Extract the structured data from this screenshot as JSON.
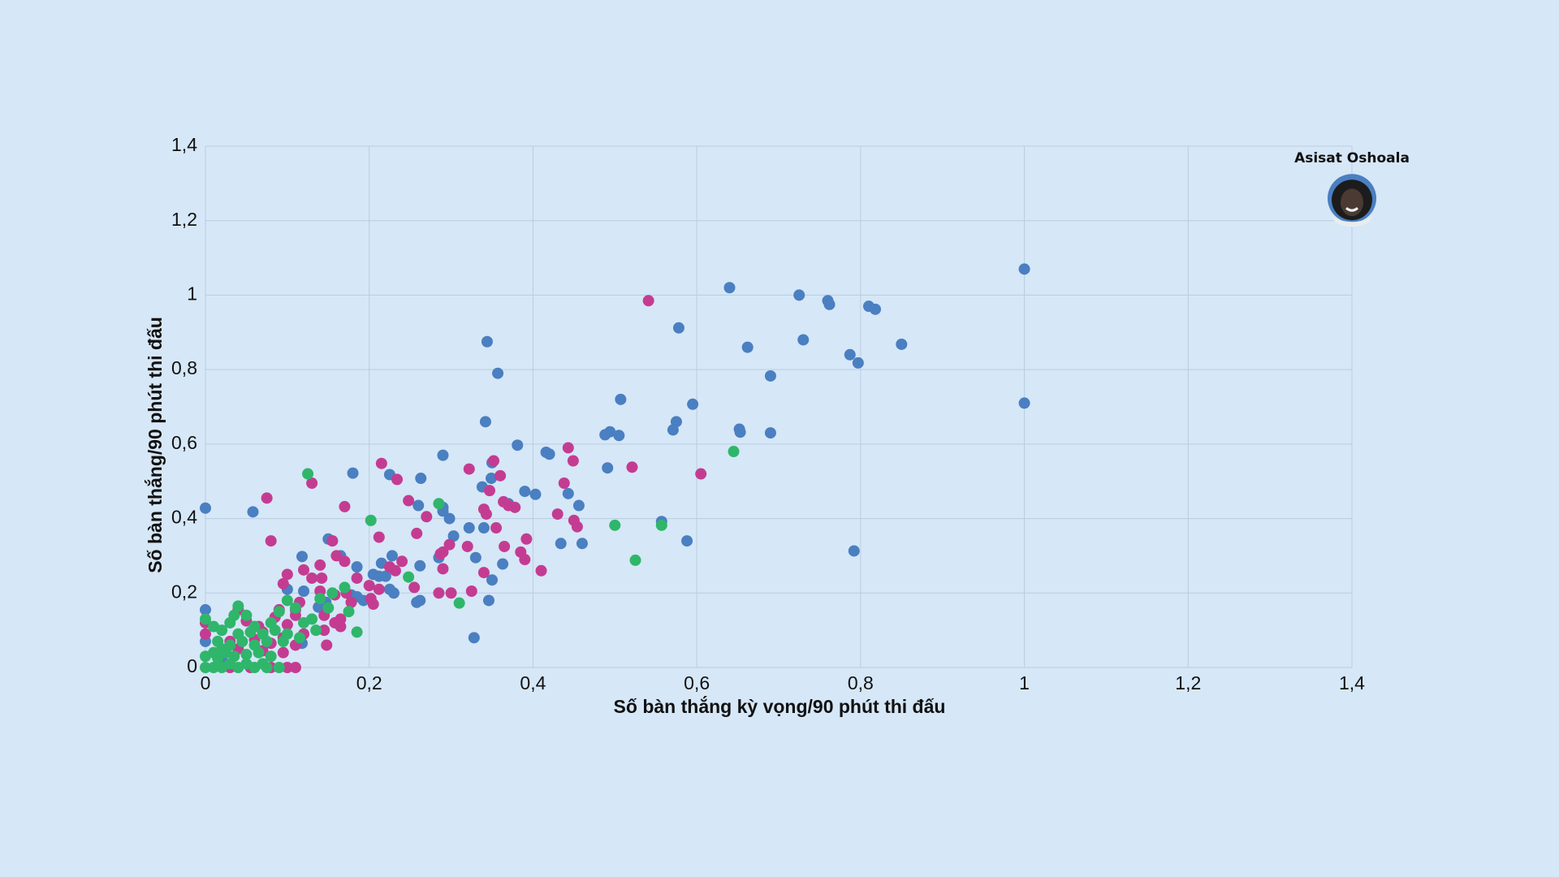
{
  "chart_data": {
    "type": "scatter",
    "title": "",
    "xlabel": "Số bàn thắng kỳ vọng/90 phút thi đấu",
    "ylabel": "Số bàn thắng/90 phút thi đấu",
    "xlim": [
      0,
      1.4
    ],
    "ylim": [
      0,
      1.4
    ],
    "x_ticks": [
      "0",
      "0,2",
      "0,4",
      "0,6",
      "0,8",
      "1",
      "1,2",
      "1,4"
    ],
    "y_ticks": [
      "0",
      "0,2",
      "0,4",
      "0,6",
      "0,8",
      "1",
      "1,2",
      "1,4"
    ],
    "grid": true,
    "highlight": {
      "name": "Asisat Oshoala",
      "x": 1.4,
      "y": 1.26,
      "color": "#4a7fc1"
    },
    "series": [
      {
        "color": "#4a7fc1",
        "points": [
          [
            1.0,
            1.07
          ],
          [
            1.0,
            0.71
          ],
          [
            0.64,
            1.02
          ],
          [
            0.725,
            1.0
          ],
          [
            0.76,
            0.985
          ],
          [
            0.762,
            0.975
          ],
          [
            0.81,
            0.97
          ],
          [
            0.818,
            0.962
          ],
          [
            0.578,
            0.912
          ],
          [
            0.85,
            0.868
          ],
          [
            0.73,
            0.88
          ],
          [
            0.662,
            0.86
          ],
          [
            0.787,
            0.84
          ],
          [
            0.797,
            0.818
          ],
          [
            0.69,
            0.783
          ],
          [
            0.344,
            0.875
          ],
          [
            0.357,
            0.79
          ],
          [
            0.507,
            0.72
          ],
          [
            0.595,
            0.707
          ],
          [
            0.575,
            0.66
          ],
          [
            0.571,
            0.638
          ],
          [
            0.652,
            0.64
          ],
          [
            0.653,
            0.632
          ],
          [
            0.69,
            0.63
          ],
          [
            0.494,
            0.633
          ],
          [
            0.488,
            0.625
          ],
          [
            0.505,
            0.623
          ],
          [
            0.342,
            0.66
          ],
          [
            0.381,
            0.597
          ],
          [
            0.416,
            0.578
          ],
          [
            0.42,
            0.573
          ],
          [
            0.29,
            0.57
          ],
          [
            0.35,
            0.55
          ],
          [
            0.491,
            0.536
          ],
          [
            0.18,
            0.522
          ],
          [
            0.225,
            0.518
          ],
          [
            0.263,
            0.508
          ],
          [
            0.349,
            0.508
          ],
          [
            0.338,
            0.485
          ],
          [
            0.39,
            0.473
          ],
          [
            0.403,
            0.465
          ],
          [
            0.443,
            0.467
          ],
          [
            0.456,
            0.435
          ],
          [
            0.37,
            0.44
          ],
          [
            0.29,
            0.43
          ],
          [
            0.26,
            0.435
          ],
          [
            0.29,
            0.42
          ],
          [
            0.298,
            0.4
          ],
          [
            0.557,
            0.392
          ],
          [
            0.34,
            0.375
          ],
          [
            0.322,
            0.375
          ],
          [
            0.303,
            0.353
          ],
          [
            0.434,
            0.333
          ],
          [
            0.46,
            0.333
          ],
          [
            0.588,
            0.34
          ],
          [
            0.792,
            0.313
          ],
          [
            0.15,
            0.345
          ],
          [
            0.155,
            0.34
          ],
          [
            0.118,
            0.298
          ],
          [
            0.165,
            0.3
          ],
          [
            0.228,
            0.3
          ],
          [
            0.285,
            0.295
          ],
          [
            0.33,
            0.295
          ],
          [
            0.363,
            0.278
          ],
          [
            0.215,
            0.28
          ],
          [
            0.262,
            0.273
          ],
          [
            0.185,
            0.27
          ],
          [
            0.205,
            0.25
          ],
          [
            0.212,
            0.245
          ],
          [
            0.22,
            0.245
          ],
          [
            0.35,
            0.235
          ],
          [
            0.1,
            0.21
          ],
          [
            0.12,
            0.205
          ],
          [
            0.225,
            0.21
          ],
          [
            0.23,
            0.2
          ],
          [
            0.178,
            0.195
          ],
          [
            0.185,
            0.19
          ],
          [
            0.193,
            0.18
          ],
          [
            0.258,
            0.175
          ],
          [
            0.262,
            0.18
          ],
          [
            0.346,
            0.18
          ],
          [
            0.147,
            0.175
          ],
          [
            0.138,
            0.162
          ],
          [
            0.328,
            0.08
          ],
          [
            0.118,
            0.065
          ],
          [
            0.0,
            0.428
          ],
          [
            0.058,
            0.418
          ],
          [
            0.0,
            0.155
          ],
          [
            0.0,
            0.07
          ],
          [
            0.02,
            0.025
          ]
        ]
      },
      {
        "color": "#c43c91",
        "points": [
          [
            0.541,
            0.985
          ],
          [
            0.605,
            0.52
          ],
          [
            0.075,
            0.455
          ],
          [
            0.13,
            0.495
          ],
          [
            0.215,
            0.548
          ],
          [
            0.234,
            0.505
          ],
          [
            0.248,
            0.448
          ],
          [
            0.27,
            0.405
          ],
          [
            0.17,
            0.432
          ],
          [
            0.08,
            0.34
          ],
          [
            0.322,
            0.533
          ],
          [
            0.352,
            0.555
          ],
          [
            0.36,
            0.515
          ],
          [
            0.347,
            0.475
          ],
          [
            0.438,
            0.495
          ],
          [
            0.443,
            0.59
          ],
          [
            0.449,
            0.555
          ],
          [
            0.521,
            0.538
          ],
          [
            0.364,
            0.445
          ],
          [
            0.37,
            0.435
          ],
          [
            0.378,
            0.43
          ],
          [
            0.34,
            0.425
          ],
          [
            0.343,
            0.412
          ],
          [
            0.43,
            0.412
          ],
          [
            0.45,
            0.395
          ],
          [
            0.454,
            0.378
          ],
          [
            0.355,
            0.375
          ],
          [
            0.392,
            0.345
          ],
          [
            0.365,
            0.325
          ],
          [
            0.385,
            0.31
          ],
          [
            0.39,
            0.29
          ],
          [
            0.41,
            0.26
          ],
          [
            0.212,
            0.35
          ],
          [
            0.258,
            0.36
          ],
          [
            0.298,
            0.33
          ],
          [
            0.287,
            0.305
          ],
          [
            0.29,
            0.31
          ],
          [
            0.32,
            0.325
          ],
          [
            0.155,
            0.34
          ],
          [
            0.16,
            0.3
          ],
          [
            0.14,
            0.275
          ],
          [
            0.12,
            0.262
          ],
          [
            0.232,
            0.26
          ],
          [
            0.225,
            0.27
          ],
          [
            0.24,
            0.285
          ],
          [
            0.1,
            0.25
          ],
          [
            0.17,
            0.285
          ],
          [
            0.185,
            0.24
          ],
          [
            0.2,
            0.22
          ],
          [
            0.212,
            0.21
          ],
          [
            0.255,
            0.215
          ],
          [
            0.3,
            0.2
          ],
          [
            0.285,
            0.2
          ],
          [
            0.325,
            0.205
          ],
          [
            0.34,
            0.255
          ],
          [
            0.29,
            0.265
          ],
          [
            0.13,
            0.24
          ],
          [
            0.142,
            0.24
          ],
          [
            0.095,
            0.225
          ],
          [
            0.14,
            0.205
          ],
          [
            0.158,
            0.195
          ],
          [
            0.172,
            0.2
          ],
          [
            0.178,
            0.175
          ],
          [
            0.202,
            0.185
          ],
          [
            0.205,
            0.17
          ],
          [
            0.115,
            0.175
          ],
          [
            0.11,
            0.155
          ],
          [
            0.09,
            0.155
          ],
          [
            0.085,
            0.135
          ],
          [
            0.165,
            0.13
          ],
          [
            0.145,
            0.14
          ],
          [
            0.158,
            0.12
          ],
          [
            0.145,
            0.1
          ],
          [
            0.12,
            0.09
          ],
          [
            0.165,
            0.11
          ],
          [
            0.04,
            0.155
          ],
          [
            0.05,
            0.125
          ],
          [
            0.065,
            0.11
          ],
          [
            0.07,
            0.095
          ],
          [
            0.1,
            0.115
          ],
          [
            0.11,
            0.14
          ],
          [
            0.06,
            0.075
          ],
          [
            0.08,
            0.065
          ],
          [
            0.095,
            0.08
          ],
          [
            0.148,
            0.06
          ],
          [
            0.11,
            0.06
          ],
          [
            0.0,
            0.12
          ],
          [
            0.0,
            0.09
          ],
          [
            0.03,
            0.07
          ],
          [
            0.04,
            0.05
          ],
          [
            0.07,
            0.045
          ],
          [
            0.095,
            0.04
          ],
          [
            0.1,
            0.0
          ],
          [
            0.11,
            0.0
          ],
          [
            0.08,
            0.0
          ],
          [
            0.03,
            0.0
          ],
          [
            0.055,
            0.0
          ]
        ]
      },
      {
        "color": "#2fb66a",
        "points": [
          [
            0.125,
            0.52
          ],
          [
            0.645,
            0.58
          ],
          [
            0.202,
            0.395
          ],
          [
            0.285,
            0.44
          ],
          [
            0.5,
            0.382
          ],
          [
            0.557,
            0.382
          ],
          [
            0.525,
            0.288
          ],
          [
            0.248,
            0.243
          ],
          [
            0.31,
            0.173
          ],
          [
            0.185,
            0.095
          ],
          [
            0.17,
            0.215
          ],
          [
            0.155,
            0.2
          ],
          [
            0.14,
            0.185
          ],
          [
            0.15,
            0.16
          ],
          [
            0.175,
            0.15
          ],
          [
            0.13,
            0.13
          ],
          [
            0.1,
            0.18
          ],
          [
            0.11,
            0.16
          ],
          [
            0.09,
            0.15
          ],
          [
            0.12,
            0.12
          ],
          [
            0.135,
            0.1
          ],
          [
            0.08,
            0.12
          ],
          [
            0.06,
            0.11
          ],
          [
            0.04,
            0.165
          ],
          [
            0.05,
            0.14
          ],
          [
            0.035,
            0.14
          ],
          [
            0.03,
            0.12
          ],
          [
            0.0,
            0.13
          ],
          [
            0.01,
            0.11
          ],
          [
            0.02,
            0.1
          ],
          [
            0.04,
            0.09
          ],
          [
            0.055,
            0.095
          ],
          [
            0.07,
            0.09
          ],
          [
            0.085,
            0.1
          ],
          [
            0.1,
            0.09
          ],
          [
            0.115,
            0.08
          ],
          [
            0.095,
            0.07
          ],
          [
            0.075,
            0.07
          ],
          [
            0.06,
            0.06
          ],
          [
            0.045,
            0.07
          ],
          [
            0.03,
            0.06
          ],
          [
            0.02,
            0.05
          ],
          [
            0.01,
            0.04
          ],
          [
            0.0,
            0.03
          ],
          [
            0.015,
            0.025
          ],
          [
            0.035,
            0.03
          ],
          [
            0.05,
            0.035
          ],
          [
            0.065,
            0.04
          ],
          [
            0.08,
            0.03
          ],
          [
            0.07,
            0.01
          ],
          [
            0.05,
            0.01
          ],
          [
            0.03,
            0.01
          ],
          [
            0.01,
            0.0
          ],
          [
            0.0,
            0.0
          ],
          [
            0.02,
            0.0
          ],
          [
            0.04,
            0.0
          ],
          [
            0.06,
            0.0
          ],
          [
            0.075,
            0.0
          ],
          [
            0.09,
            0.0
          ],
          [
            0.015,
            0.07
          ],
          [
            0.025,
            0.04
          ]
        ]
      }
    ]
  }
}
